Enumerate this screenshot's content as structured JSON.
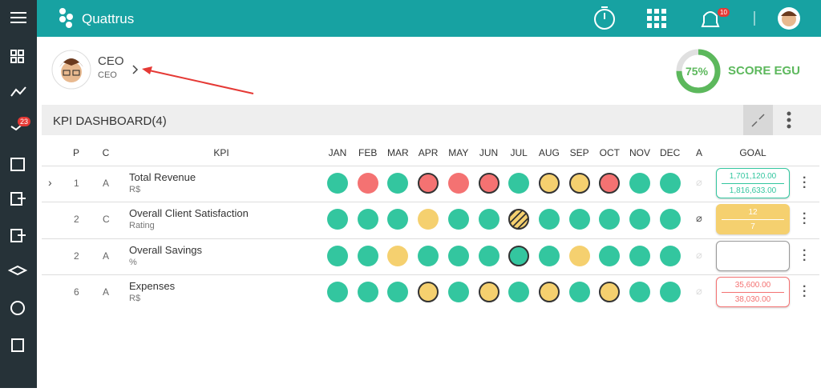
{
  "app": {
    "name": "Quattrus",
    "notifications": "10",
    "sidebar_badge": "23"
  },
  "profile": {
    "name": "CEO",
    "role": "CEO"
  },
  "score": {
    "value": 75,
    "label": "75%",
    "title": "SCORE EGU"
  },
  "dashboard": {
    "title": "KPI DASHBOARD(4)",
    "columns": [
      "P",
      "C",
      "KPI",
      "JAN",
      "FEB",
      "MAR",
      "APR",
      "MAY",
      "JUN",
      "JUL",
      "AUG",
      "SEP",
      "OCT",
      "NOV",
      "DEC",
      "A",
      "GOAL"
    ],
    "rows": [
      {
        "p": "1",
        "c": "A",
        "kpi": "Total Revenue",
        "unit": "R$",
        "goal_color": "#33c69f",
        "goal_fill": "#ffffff",
        "goal": [
          "1,701,120.00",
          "1,816,633.00"
        ],
        "cells": [
          {
            "fill": "#33c69f"
          },
          {
            "fill": "#f47272"
          },
          {
            "fill": "#33c69f"
          },
          {
            "fill": "#f47272",
            "ring": true
          },
          {
            "fill": "#f47272"
          },
          {
            "fill": "#f47272",
            "ring": true
          },
          {
            "fill": "#33c69f"
          },
          {
            "fill": "#f5d06f",
            "ring": true
          },
          {
            "fill": "#f5d06f",
            "ring": true
          },
          {
            "fill": "#f47272",
            "ring": true
          },
          {
            "fill": "#33c69f"
          },
          {
            "fill": "#33c69f"
          }
        ]
      },
      {
        "p": "2",
        "c": "C",
        "kpi": "Overall Client Satisfaction",
        "unit": "Rating",
        "goal_color": "#f5d06f",
        "goal_fill": "#f5d06f",
        "goal": [
          "12",
          "7"
        ],
        "cells": [
          {
            "fill": "#33c69f"
          },
          {
            "fill": "#33c69f"
          },
          {
            "fill": "#33c69f"
          },
          {
            "fill": "#f5d06f"
          },
          {
            "fill": "#33c69f"
          },
          {
            "fill": "#33c69f"
          },
          {
            "fill": "#f5d06f",
            "ring": true,
            "hatch": true
          },
          {
            "fill": "#33c69f"
          },
          {
            "fill": "#33c69f"
          },
          {
            "fill": "#33c69f"
          },
          {
            "fill": "#33c69f"
          },
          {
            "fill": "#33c69f"
          }
        ]
      },
      {
        "p": "2",
        "c": "A",
        "kpi": "Overall Savings",
        "unit": "%",
        "goal_color": "#999999",
        "goal_fill": "#ffffff",
        "goal": [],
        "cells": [
          {
            "fill": "#33c69f"
          },
          {
            "fill": "#33c69f"
          },
          {
            "fill": "#f5d06f"
          },
          {
            "fill": "#33c69f"
          },
          {
            "fill": "#33c69f"
          },
          {
            "fill": "#33c69f"
          },
          {
            "fill": "#33c69f",
            "ring": true
          },
          {
            "fill": "#33c69f"
          },
          {
            "fill": "#f5d06f"
          },
          {
            "fill": "#33c69f"
          },
          {
            "fill": "#33c69f"
          },
          {
            "fill": "#33c69f"
          }
        ]
      },
      {
        "p": "6",
        "c": "A",
        "kpi": "Expenses",
        "unit": "R$",
        "goal_color": "#f47272",
        "goal_fill": "#ffffff",
        "goal": [
          "35,600.00",
          "38,030.00"
        ],
        "cells": [
          {
            "fill": "#33c69f"
          },
          {
            "fill": "#33c69f"
          },
          {
            "fill": "#33c69f"
          },
          {
            "fill": "#f5d06f",
            "ring": true
          },
          {
            "fill": "#33c69f"
          },
          {
            "fill": "#f5d06f",
            "ring": true
          },
          {
            "fill": "#33c69f"
          },
          {
            "fill": "#f5d06f",
            "ring": true
          },
          {
            "fill": "#33c69f"
          },
          {
            "fill": "#f5d06f",
            "ring": true
          },
          {
            "fill": "#33c69f"
          },
          {
            "fill": "#33c69f"
          }
        ]
      }
    ]
  }
}
